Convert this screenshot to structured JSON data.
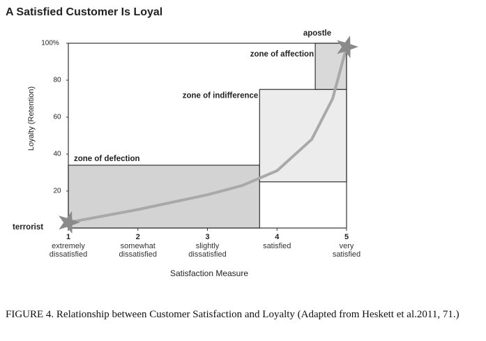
{
  "chart_data": {
    "type": "line",
    "title": "A Satisfied Customer Is Loyal",
    "x_label": "Satisfaction Measure",
    "y_label": "Loyalty (Retention)",
    "xlim": [
      1,
      5
    ],
    "ylim": [
      0,
      100
    ],
    "xticks": [
      1,
      2,
      3,
      4,
      5
    ],
    "xtick_descriptions": [
      "extremely\ndissatisfied",
      "somewhat\ndissatisfied",
      "slightly\ndissatisfied",
      "satisfied",
      "very\nsatisfied"
    ],
    "yticks": [
      20,
      40,
      60,
      80,
      {
        "value": 100,
        "label": "100%"
      }
    ],
    "x": [
      1,
      2,
      3,
      3.5,
      4,
      4.5,
      4.8,
      5
    ],
    "values": [
      3,
      10,
      18,
      23,
      31,
      48,
      70,
      98
    ],
    "color": "#a9a9a9",
    "start_label": "terrorist",
    "end_label": "apostle",
    "zones": [
      {
        "label": "zone of defection",
        "x0": 1,
        "x1": 3.75,
        "y0": 0,
        "y1": 34,
        "color": "#d3d3d3"
      },
      {
        "label": "zone of indifference",
        "x0": 3.75,
        "x1": 5,
        "y0": 25,
        "y1": 75,
        "color": "#ececec"
      },
      {
        "label": "zone of affection",
        "x0": 4.55,
        "x1": 5,
        "y0": 75,
        "y1": 100,
        "color": "#d9d9d9"
      }
    ]
  },
  "caption": "FIGURE 4. Relationship between Customer Satisfaction and Loyalty (Adapted from Heskett et al.2011, 71.)"
}
